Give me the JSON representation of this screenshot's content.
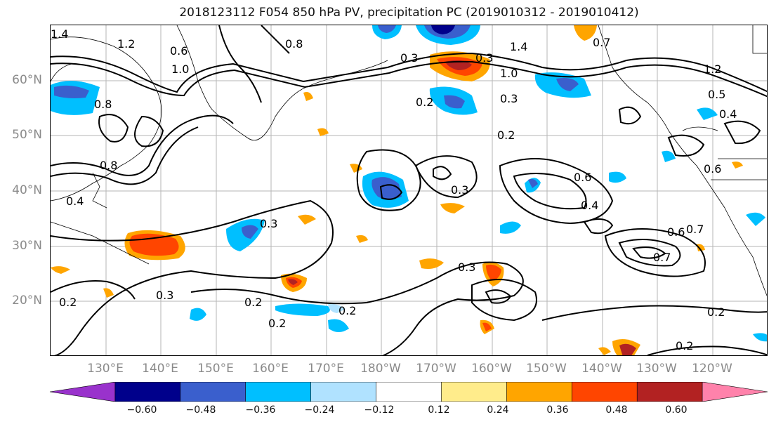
{
  "title": "2018123112 F054 850 hPa PV, precipitation PC (2019010312 - 2019010412)",
  "map": {
    "lat_labels": [
      "60°N",
      "50°N",
      "40°N",
      "30°N",
      "20°N"
    ],
    "lon_labels": [
      "130°E",
      "140°E",
      "150°E",
      "160°E",
      "170°E",
      "180°W",
      "170°W",
      "160°W",
      "150°W",
      "140°W",
      "130°W",
      "120°W"
    ],
    "contour_labels": [
      "1.4",
      "1.2",
      "0.8",
      "0.6",
      "0.8",
      "0.3",
      "0.3",
      "1.0",
      "1.4",
      "0.7",
      "1.2",
      "0.5",
      "0.4",
      "0.2",
      "0.2",
      "0.3",
      "0.6",
      "0.6",
      "0.4",
      "0.3",
      "0.3",
      "0.3",
      "0.2",
      "0.2",
      "0.2",
      "0.6",
      "0.7",
      "0.7",
      "0.2",
      "0.2",
      "0.2",
      "0.3",
      "0.4",
      "0.8",
      "1.0"
    ]
  },
  "colorbar": {
    "colors": [
      "#9932cc",
      "#00008b",
      "#3a5fcd",
      "#00bfff",
      "#b0e2ff",
      "#ffffff",
      "#ffec8b",
      "#ffa500",
      "#ff4500",
      "#b22222",
      "#ff82ab"
    ],
    "tick_labels": [
      "−0.60",
      "−0.48",
      "−0.36",
      "−0.24",
      "−0.12",
      "0.12",
      "0.24",
      "0.36",
      "0.48",
      "0.60"
    ]
  }
}
